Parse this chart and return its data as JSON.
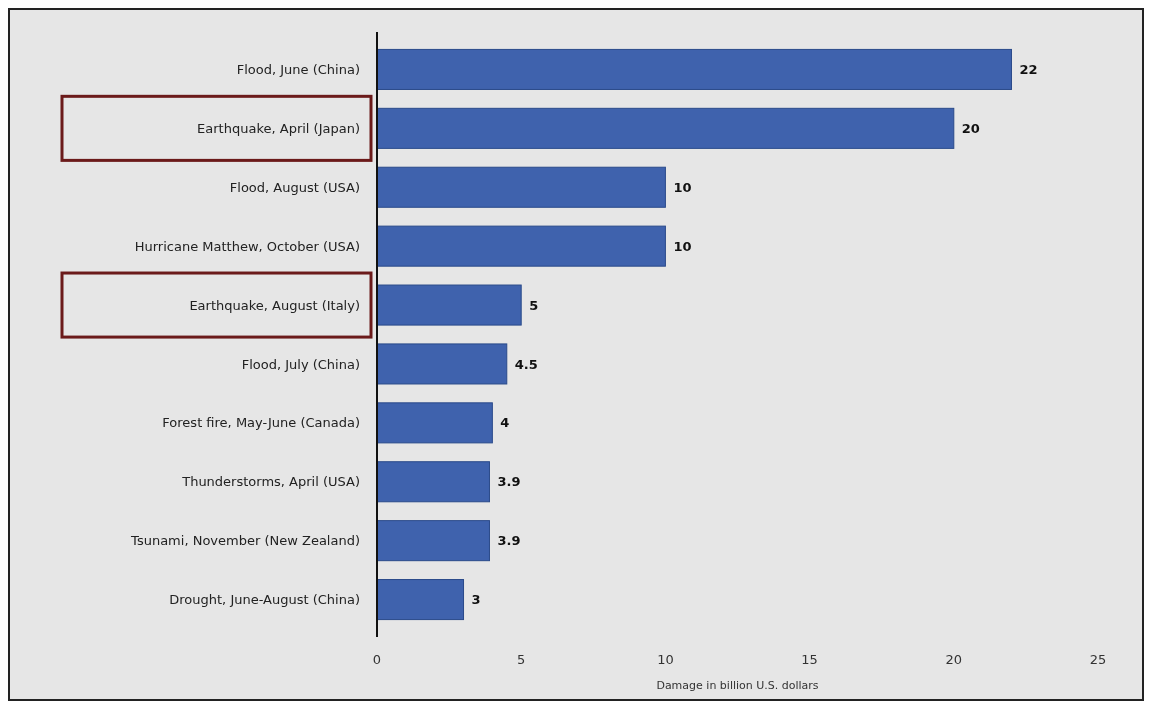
{
  "chart_data": {
    "type": "bar",
    "orientation": "horizontal",
    "categories": [
      "Flood, June (China)",
      "Earthquake, April (Japan)",
      "Flood, August (USA)",
      "Hurricane Matthew, October (USA)",
      "Earthquake, August (Italy)",
      "Flood, July (China)",
      "Forest fire, May-June (Canada)",
      "Thunderstorms, April (USA)",
      "Tsunami, November (New Zealand)",
      "Drought, June-August (China)"
    ],
    "values": [
      22,
      20,
      10,
      10,
      5,
      4.5,
      4,
      3.9,
      3.9,
      3
    ],
    "color": "#3f62ad",
    "xlabel": "Damage in billion U.S. dollars",
    "xlim": [
      0,
      25
    ],
    "xticks": [
      0,
      5,
      10,
      15,
      20,
      25
    ],
    "data_labels": true
  }
}
